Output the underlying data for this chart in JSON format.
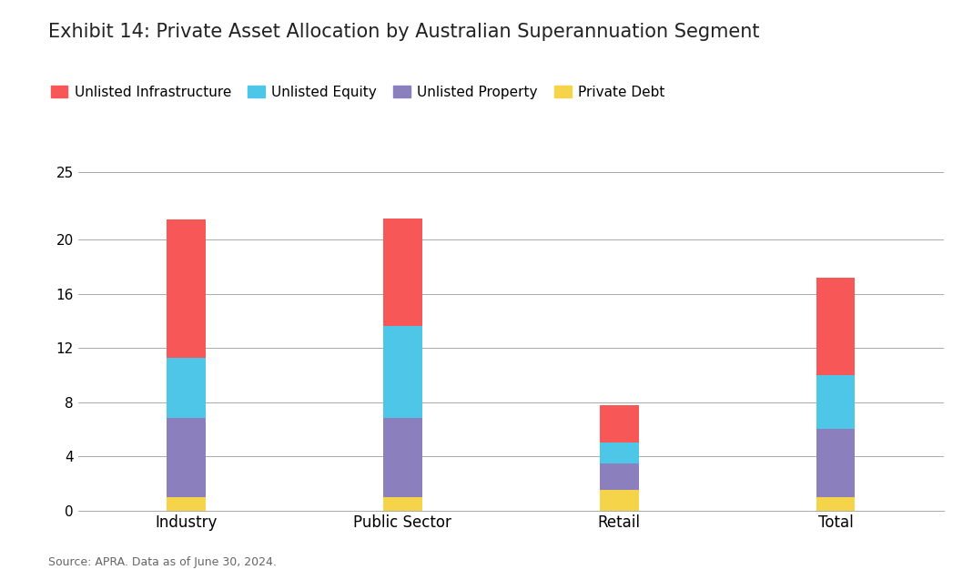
{
  "title": "Exhibit 14: Private Asset Allocation by Australian Superannuation Segment",
  "categories": [
    "Industry",
    "Public Sector",
    "Retail",
    "Total"
  ],
  "series": {
    "Private Debt": [
      1.0,
      1.0,
      1.5,
      1.0
    ],
    "Unlisted Property": [
      5.8,
      5.8,
      2.0,
      5.0
    ],
    "Unlisted Equity": [
      4.5,
      6.8,
      1.5,
      4.0
    ],
    "Unlisted Infrastructure": [
      10.2,
      8.0,
      2.8,
      7.2
    ]
  },
  "colors": {
    "Unlisted Infrastructure": "#F75757",
    "Unlisted Equity": "#4EC6E8",
    "Unlisted Property": "#8B7FBD",
    "Private Debt": "#F5D44A"
  },
  "legend_order": [
    "Unlisted Infrastructure",
    "Unlisted Equity",
    "Unlisted Property",
    "Private Debt"
  ],
  "ylim": [
    0,
    27
  ],
  "yticks": [
    0,
    4,
    8,
    12,
    16,
    20,
    25
  ],
  "ylabel": "",
  "xlabel": "",
  "source_text": "Source: APRA. Data as of June 30, 2024.",
  "background_color": "#ffffff",
  "title_fontsize": 15,
  "bar_width": 0.18
}
